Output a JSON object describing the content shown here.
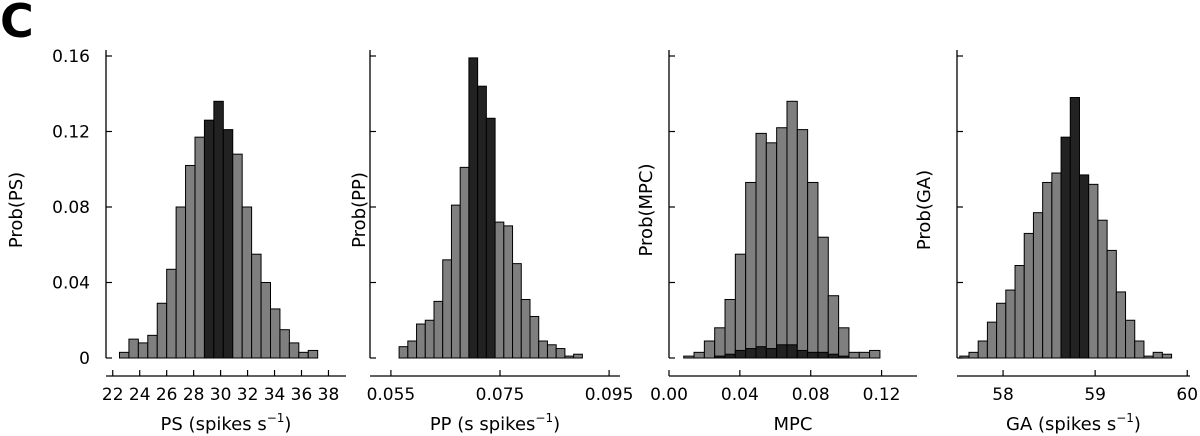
{
  "panel_letter": "C",
  "colors": {
    "gray_bar": "#7f7f7f",
    "dark_bar": "#222222",
    "axis": "#000000"
  },
  "chart_data": [
    {
      "type": "bar",
      "title": "",
      "xlabel": "PS (spikes s",
      "xlabel_sup": "−1",
      "xlabel_suffix": ")",
      "ylabel": "Prob(PS)",
      "xlim": [
        21.5,
        39.3
      ],
      "ylim": [
        0,
        0.16
      ],
      "yticks": [
        0,
        0.04,
        0.08,
        0.12,
        0.16
      ],
      "ytick_labels": [
        "0",
        "0.04",
        "0.08",
        "0.12",
        "0.16"
      ],
      "xticks": [
        22,
        24,
        26,
        28,
        30,
        32,
        34,
        36,
        38
      ],
      "xtick_labels": [
        "22",
        "24",
        "26",
        "28",
        "30",
        "32",
        "34",
        "36",
        "38"
      ],
      "bin_start": 22.5,
      "bin_width": 0.7,
      "values": [
        0.003,
        0.01,
        0.008,
        0.012,
        0.029,
        0.047,
        0.08,
        0.102,
        0.117,
        0.126,
        0.136,
        0.121,
        0.108,
        0.08,
        0.055,
        0.04,
        0.026,
        0.015,
        0.008,
        0.003,
        0.004
      ],
      "highlight": [
        9,
        10,
        11
      ]
    },
    {
      "type": "bar",
      "title": "",
      "xlabel": "PP (s spikes",
      "xlabel_sup": "−1",
      "xlabel_suffix": ")",
      "ylabel": "Prob(PP)",
      "xlim": [
        0.053,
        0.097
      ],
      "ylim": [
        0,
        0.16
      ],
      "xticks": [
        0.055,
        0.075,
        0.095
      ],
      "xtick_labels": [
        "0.055",
        "0.075",
        "0.095"
      ],
      "bin_start": 0.0565,
      "bin_width": 0.0016,
      "values": [
        0.006,
        0.009,
        0.018,
        0.02,
        0.03,
        0.052,
        0.081,
        0.101,
        0.159,
        0.144,
        0.127,
        0.072,
        0.07,
        0.05,
        0.031,
        0.022,
        0.009,
        0.007,
        0.005,
        0.001,
        0.002
      ],
      "highlight": [
        8,
        9,
        10
      ]
    },
    {
      "type": "bar",
      "title": "",
      "xlabel": "MPC",
      "xlabel_sup": "",
      "xlabel_suffix": "",
      "ylabel": "Prob(MPC)",
      "xlim": [
        0,
        0.14
      ],
      "ylim": [
        0,
        0.16
      ],
      "xticks": [
        0.0,
        0.04,
        0.08,
        0.12
      ],
      "xtick_labels": [
        "0.00",
        "0.04",
        "0.08",
        "0.12"
      ],
      "bin_start": 0.0083,
      "bin_width": 0.00583,
      "values": [
        0.001,
        0.003,
        0.009,
        0.016,
        0.031,
        0.055,
        0.093,
        0.119,
        0.114,
        0.122,
        0.136,
        0.121,
        0.093,
        0.064,
        0.033,
        0.016,
        0.003,
        0.003,
        0.004
      ],
      "dark_values": [
        0.0,
        0.0,
        0.0,
        0.001,
        0.002,
        0.004,
        0.005,
        0.006,
        0.005,
        0.007,
        0.007,
        0.004,
        0.003,
        0.003,
        0.002,
        0.001,
        0.0,
        0.0,
        0.0
      ],
      "highlight": []
    },
    {
      "type": "bar",
      "title": "",
      "xlabel": "GA (spikes s",
      "xlabel_sup": "−1",
      "xlabel_suffix": ")",
      "ylabel": "Prob(GA)",
      "xlim": [
        57.5,
        60.03
      ],
      "ylim": [
        0,
        0.16
      ],
      "xticks": [
        58,
        59,
        60
      ],
      "xtick_labels": [
        "58",
        "59",
        "60"
      ],
      "bin_start": 57.53,
      "bin_width": 0.1,
      "values": [
        0.001,
        0.003,
        0.009,
        0.019,
        0.029,
        0.036,
        0.049,
        0.066,
        0.077,
        0.093,
        0.098,
        0.117,
        0.138,
        0.097,
        0.092,
        0.073,
        0.057,
        0.035,
        0.02,
        0.009,
        0.001,
        0.003,
        0.002
      ],
      "highlight": [
        11,
        12,
        13
      ]
    }
  ]
}
